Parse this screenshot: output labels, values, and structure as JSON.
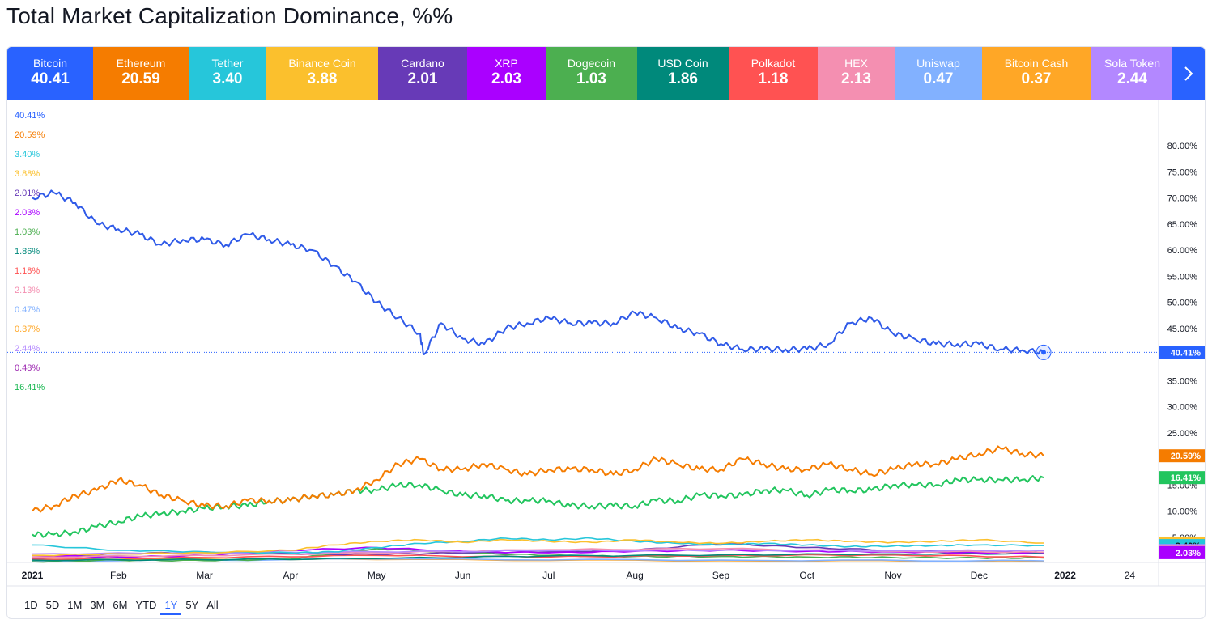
{
  "title": "Total Market Capitalization Dominance, %%",
  "colors": {
    "bitcoin": "#2f5ae8",
    "ethereum": "#f57c00",
    "tether": "#26c6da",
    "binance": "#fbc02d",
    "cardano": "#673ab7",
    "xrp": "#aa00ff",
    "dogecoin": "#4caf50",
    "usdcoin": "#00897b",
    "polkadot": "#ff5252",
    "hex": "#f48fb1",
    "uniswap": "#82b1ff",
    "bitcoincash": "#ffa726",
    "sola": "#b388ff",
    "others": "#22c55e"
  },
  "tabs": [
    {
      "name": "Bitcoin",
      "value": "40.41",
      "color": "#2962ff"
    },
    {
      "name": "Ethereum",
      "value": "20.59",
      "color": "#f57c00"
    },
    {
      "name": "Tether",
      "value": "3.40",
      "color": "#26c6da"
    },
    {
      "name": "Binance Coin",
      "value": "3.88",
      "color": "#fbc02d"
    },
    {
      "name": "Cardano",
      "value": "2.01",
      "color": "#673ab7"
    },
    {
      "name": "XRP",
      "value": "2.03",
      "color": "#aa00ff"
    },
    {
      "name": "Dogecoin",
      "value": "1.03",
      "color": "#4caf50"
    },
    {
      "name": "USD Coin",
      "value": "1.86",
      "color": "#00897b"
    },
    {
      "name": "Polkadot",
      "value": "1.18",
      "color": "#ff5252"
    },
    {
      "name": "HEX",
      "value": "2.13",
      "color": "#f48fb1"
    },
    {
      "name": "Uniswap",
      "value": "0.47",
      "color": "#82b1ff"
    },
    {
      "name": "Bitcoin Cash",
      "value": "0.37",
      "color": "#ffa726"
    },
    {
      "name": "Sola Token",
      "value": "2.44",
      "color": "#b388ff"
    }
  ],
  "next_icon": "chevron-right-icon",
  "legend_values": [
    {
      "text": "40.41%",
      "color": "#2962ff"
    },
    {
      "text": "20.59%",
      "color": "#f57c00"
    },
    {
      "text": "3.40%",
      "color": "#26c6da"
    },
    {
      "text": "3.88%",
      "color": "#fbc02d"
    },
    {
      "text": "2.01%",
      "color": "#673ab7"
    },
    {
      "text": "2.03%",
      "color": "#aa00ff"
    },
    {
      "text": "1.03%",
      "color": "#4caf50"
    },
    {
      "text": "1.86%",
      "color": "#00897b"
    },
    {
      "text": "1.18%",
      "color": "#ff5252"
    },
    {
      "text": "2.13%",
      "color": "#f48fb1"
    },
    {
      "text": "0.47%",
      "color": "#82b1ff"
    },
    {
      "text": "0.37%",
      "color": "#ffa726"
    },
    {
      "text": "2.44%",
      "color": "#b388ff"
    },
    {
      "text": "0.48%",
      "color": "#9c27b0"
    },
    {
      "text": "16.41%",
      "color": "#1db954"
    }
  ],
  "price_labels": [
    {
      "text": "40.41%",
      "value": 40.41,
      "color": "#2962ff"
    },
    {
      "text": "20.59%",
      "value": 20.59,
      "color": "#f57c00"
    },
    {
      "text": "16.41%",
      "value": 16.41,
      "color": "#22c55e"
    },
    {
      "text": "3.88%",
      "value": 3.88,
      "color": "#fbc02d",
      "dark": true
    },
    {
      "text": "3.40%",
      "value": 3.4,
      "color": "#26c6da",
      "dark": true
    },
    {
      "text": "2.44%",
      "value": 2.44,
      "color": "#b388ff",
      "dark": true
    },
    {
      "text": "2.13%",
      "value": 2.13,
      "color": "#f48fb1",
      "dark": true
    },
    {
      "text": "2.03%",
      "value": 2.03,
      "color": "#aa00ff"
    }
  ],
  "range_buttons": [
    {
      "label": "1D"
    },
    {
      "label": "5D"
    },
    {
      "label": "1M"
    },
    {
      "label": "3M"
    },
    {
      "label": "6M"
    },
    {
      "label": "YTD"
    },
    {
      "label": "1Y",
      "active": true
    },
    {
      "label": "5Y"
    },
    {
      "label": "All"
    }
  ],
  "chart_data": {
    "type": "line",
    "title": "Total Market Capitalization Dominance, %%",
    "y_axis_ticks": [
      "80.00%",
      "75.00%",
      "70.00%",
      "65.00%",
      "60.00%",
      "55.00%",
      "50.00%",
      "45.00%",
      "40.00%",
      "35.00%",
      "30.00%",
      "25.00%",
      "20.00%",
      "15.00%",
      "10.00%",
      "5.00%"
    ],
    "ylim": [
      0,
      82
    ],
    "x_axis_ticks": [
      "2021",
      "Feb",
      "Mar",
      "Apr",
      "May",
      "Jun",
      "Jul",
      "Aug",
      "Sep",
      "Oct",
      "Nov",
      "Dec",
      "2022",
      "24"
    ],
    "x_tick_months": [
      0,
      1,
      2,
      3,
      4,
      5,
      6,
      7,
      8,
      9,
      10,
      11,
      12,
      12.75
    ],
    "xlim": [
      0,
      12.8
    ],
    "series": [
      {
        "name": "Bitcoin",
        "color": "#2f5ae8",
        "last": 40.41,
        "x": [
          0,
          0.25,
          0.5,
          0.75,
          1.0,
          1.25,
          1.5,
          1.75,
          2.0,
          2.25,
          2.5,
          2.75,
          3.0,
          3.25,
          3.5,
          3.75,
          4.0,
          4.25,
          4.5,
          4.55,
          4.75,
          5.0,
          5.25,
          5.5,
          5.75,
          6.0,
          6.25,
          6.5,
          6.75,
          7.0,
          7.25,
          7.5,
          7.75,
          8.0,
          8.25,
          8.5,
          8.75,
          9.0,
          9.25,
          9.5,
          9.75,
          10.0,
          10.25,
          10.5,
          10.75,
          11.0,
          11.25,
          11.5,
          11.75
        ],
        "values": [
          70,
          71,
          69,
          65,
          64,
          63,
          61,
          62,
          62,
          61,
          63,
          62,
          61,
          60,
          57,
          54,
          50,
          47,
          44,
          40,
          46,
          43,
          42,
          45,
          46,
          47,
          46,
          46,
          46,
          48,
          47,
          45,
          44,
          42,
          41,
          41,
          41,
          41,
          42,
          46,
          47,
          44,
          43,
          42,
          42,
          42,
          41,
          40.8,
          40.41
        ]
      },
      {
        "name": "Ethereum",
        "color": "#f57c00",
        "last": 20.59,
        "x": [
          0,
          0.25,
          0.5,
          0.75,
          1.0,
          1.25,
          1.5,
          1.75,
          2.0,
          2.25,
          2.5,
          2.75,
          3.0,
          3.25,
          3.5,
          3.75,
          4.0,
          4.25,
          4.5,
          4.75,
          5.0,
          5.25,
          5.5,
          5.75,
          6.0,
          6.25,
          6.5,
          6.75,
          7.0,
          7.25,
          7.5,
          7.75,
          8.0,
          8.25,
          8.5,
          8.75,
          9.0,
          9.25,
          9.5,
          9.75,
          10.0,
          10.25,
          10.5,
          10.75,
          11.0,
          11.25,
          11.5,
          11.75
        ],
        "values": [
          10,
          11,
          13,
          14,
          16,
          15,
          13,
          12,
          11,
          11,
          12,
          12,
          12,
          13,
          13,
          14,
          16,
          19,
          20,
          18,
          18,
          19,
          18,
          17,
          18,
          18,
          18,
          17,
          18,
          20,
          19,
          18,
          18,
          20,
          19,
          18,
          18,
          19,
          18,
          17,
          18,
          19,
          19,
          20,
          21,
          22,
          21,
          20.59
        ]
      },
      {
        "name": "Others",
        "color": "#22c55e",
        "last": 16.41,
        "x": [
          0,
          0.25,
          0.5,
          0.75,
          1.0,
          1.25,
          1.5,
          1.75,
          2.0,
          2.25,
          2.5,
          2.75,
          3.0,
          3.25,
          3.5,
          3.75,
          4.0,
          4.25,
          4.5,
          4.75,
          5.0,
          5.25,
          5.5,
          5.75,
          6.0,
          6.25,
          6.5,
          6.75,
          7.0,
          7.25,
          7.5,
          7.75,
          8.0,
          8.25,
          8.5,
          8.75,
          9.0,
          9.25,
          9.5,
          9.75,
          10.0,
          10.25,
          10.5,
          10.75,
          11.0,
          11.25,
          11.5,
          11.75
        ],
        "values": [
          5.5,
          5.5,
          6,
          7,
          8,
          9,
          9.5,
          10,
          10.5,
          11,
          11,
          12,
          12,
          13,
          13,
          14,
          14,
          15,
          15,
          14,
          13,
          13,
          12,
          12,
          12,
          11,
          11,
          11,
          11,
          12,
          12,
          13,
          13,
          13,
          14,
          14,
          13,
          14,
          14,
          14,
          15,
          15,
          15,
          16,
          16,
          16,
          16,
          16.41
        ]
      },
      {
        "name": "Binance Coin",
        "color": "#fbc02d",
        "last": 3.88,
        "x": [
          0,
          1,
          2,
          3,
          3.5,
          4,
          4.5,
          5,
          5.5,
          6,
          6.5,
          7,
          7.5,
          8,
          8.5,
          9,
          9.5,
          10,
          10.5,
          11,
          11.75
        ],
        "values": [
          1.5,
          1.8,
          2.0,
          2.5,
          3.5,
          4.2,
          4.5,
          4.0,
          4.5,
          4.2,
          4.0,
          4.5,
          4.0,
          3.8,
          4.2,
          4.5,
          4.2,
          4.0,
          4.2,
          4.5,
          3.88
        ]
      },
      {
        "name": "Tether",
        "color": "#26c6da",
        "last": 3.4,
        "x": [
          0,
          1,
          2,
          3,
          3.5,
          4,
          4.5,
          5,
          5.5,
          6,
          6.5,
          7,
          7.5,
          8,
          8.5,
          9,
          9.5,
          10,
          10.5,
          11,
          11.75
        ],
        "values": [
          3.5,
          2.5,
          2.2,
          2.0,
          2.2,
          3.0,
          3.8,
          4.2,
          4.8,
          4.5,
          4.8,
          4.2,
          3.8,
          3.5,
          3.8,
          3.5,
          3.2,
          3.3,
          3.4,
          3.5,
          3.4
        ]
      },
      {
        "name": "Sola Token",
        "color": "#b388ff",
        "last": 2.44,
        "x": [
          0,
          2,
          4,
          6,
          8,
          10,
          11.75
        ],
        "values": [
          1.8,
          2.0,
          2.2,
          2.4,
          2.5,
          2.4,
          2.44
        ]
      },
      {
        "name": "HEX",
        "color": "#f48fb1",
        "last": 2.13,
        "x": [
          0,
          2,
          4,
          6,
          8,
          10,
          11.75
        ],
        "values": [
          1.2,
          1.5,
          2.0,
          2.6,
          2.8,
          2.3,
          2.13
        ]
      },
      {
        "name": "XRP",
        "color": "#aa00ff",
        "last": 2.03,
        "x": [
          0,
          1,
          2,
          3,
          4,
          5,
          6,
          7,
          8,
          9,
          10,
          11,
          11.75
        ],
        "values": [
          1.5,
          1.2,
          1.5,
          2.5,
          3.0,
          2.3,
          2.0,
          2.3,
          2.5,
          2.3,
          2.2,
          2.0,
          2.03
        ]
      },
      {
        "name": "Cardano",
        "color": "#673ab7",
        "last": 2.01,
        "x": [
          0,
          1,
          2,
          3,
          4,
          5,
          6,
          7,
          8,
          9,
          10,
          11,
          11.75
        ],
        "values": [
          1.0,
          1.8,
          2.2,
          1.8,
          1.7,
          2.0,
          2.2,
          2.5,
          3.8,
          3.0,
          2.5,
          2.2,
          2.01
        ]
      },
      {
        "name": "USD Coin",
        "color": "#00897b",
        "last": 1.86,
        "x": [
          0,
          2,
          4,
          6,
          8,
          10,
          11.75
        ],
        "values": [
          0.6,
          0.7,
          0.9,
          1.4,
          1.6,
          1.8,
          1.86
        ]
      },
      {
        "name": "Polkadot",
        "color": "#ff5252",
        "last": 1.18,
        "x": [
          0,
          2,
          4,
          6,
          8,
          10,
          11.75
        ],
        "values": [
          0.8,
          1.1,
          1.5,
          1.2,
          1.5,
          1.6,
          1.18
        ]
      },
      {
        "name": "Dogecoin",
        "color": "#4caf50",
        "last": 1.03,
        "x": [
          0,
          1,
          2,
          3,
          4,
          5,
          6,
          7,
          8,
          9,
          10,
          11,
          11.75
        ],
        "values": [
          0.3,
          0.6,
          0.5,
          0.8,
          2.8,
          2.0,
          1.5,
          1.3,
          1.3,
          1.2,
          1.1,
          1.0,
          1.03
        ]
      },
      {
        "name": "Uniswap",
        "color": "#82b1ff",
        "last": 0.47,
        "x": [
          0,
          4,
          8,
          11.75
        ],
        "values": [
          0.4,
          0.8,
          0.6,
          0.47
        ]
      },
      {
        "name": "Bitcoin Cash",
        "color": "#ffa726",
        "last": 0.37,
        "x": [
          0,
          4,
          8,
          11.75
        ],
        "values": [
          0.8,
          0.7,
          0.5,
          0.37
        ]
      }
    ]
  }
}
